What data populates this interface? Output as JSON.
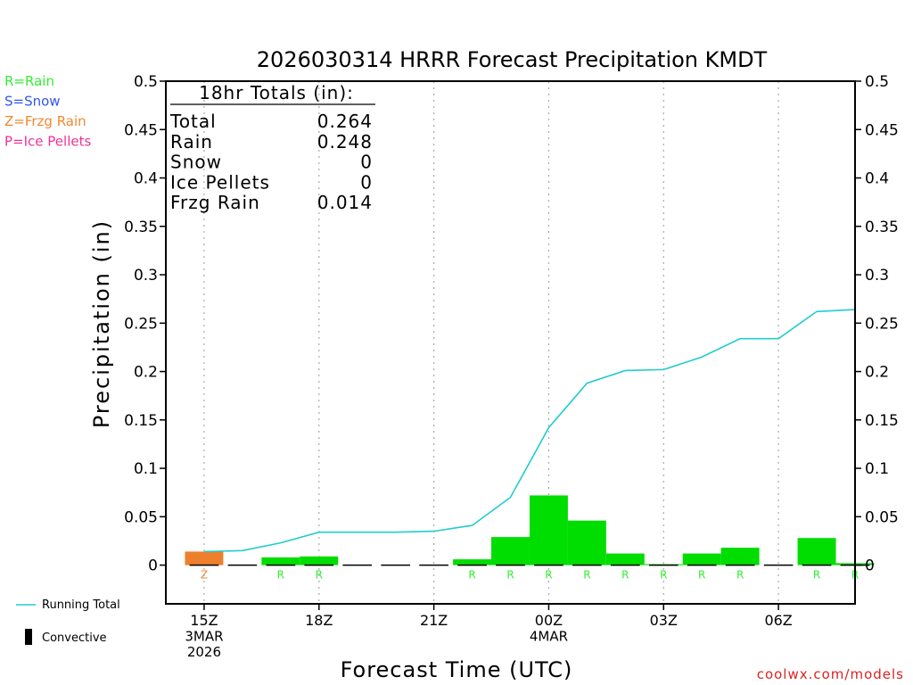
{
  "chart_data": {
    "type": "bar",
    "title": "2026030314 HRRR Forecast Precipitation KMDT",
    "xlabel": "Forecast Time (UTC)",
    "ylabel": "Precipitation (in)",
    "ylim": [
      -0.04,
      0.5
    ],
    "y_ticks": [
      0,
      0.05,
      0.1,
      0.15,
      0.2,
      0.25,
      0.3,
      0.35,
      0.4,
      0.45,
      0.5
    ],
    "y_tick_labels": [
      "0",
      "0.05",
      "0.1",
      "0.15",
      "0.2",
      "0.25",
      "0.3",
      "0.35",
      "0.4",
      "0.45",
      "0.5"
    ],
    "x_ticks": [
      {
        "hour": 0,
        "lines": [
          "15Z",
          "3MAR",
          "2026"
        ]
      },
      {
        "hour": 3,
        "lines": [
          "18Z"
        ]
      },
      {
        "hour": 6,
        "lines": [
          "21Z"
        ]
      },
      {
        "hour": 9,
        "lines": [
          "00Z",
          "4MAR"
        ]
      },
      {
        "hour": 12,
        "lines": [
          "03Z"
        ]
      },
      {
        "hour": 15,
        "lines": [
          "06Z"
        ]
      }
    ],
    "x_range_hours": [
      -1,
      17
    ],
    "grid": "vertical dotted at labeled hours",
    "type_legend": [
      {
        "code": "R",
        "text": "R=Rain",
        "color": "#33ee33"
      },
      {
        "code": "S",
        "text": "S=Snow",
        "color": "#3355ee"
      },
      {
        "code": "Z",
        "text": "Z=Frzg Rain",
        "color": "#ee8833"
      },
      {
        "code": "P",
        "text": "P=Ice Pellets",
        "color": "#ee3399"
      }
    ],
    "bar_colors": {
      "R": "#00dd00",
      "Z": "#ee7f2d"
    },
    "hourly": [
      {
        "hour": 0,
        "value": 0.014,
        "type": "Z"
      },
      {
        "hour": 1,
        "value": 0,
        "type": ""
      },
      {
        "hour": 2,
        "value": 0.008,
        "type": "R"
      },
      {
        "hour": 3,
        "value": 0.009,
        "type": "R"
      },
      {
        "hour": 4,
        "value": 0,
        "type": ""
      },
      {
        "hour": 5,
        "value": 0,
        "type": ""
      },
      {
        "hour": 6,
        "value": 0,
        "type": ""
      },
      {
        "hour": 7,
        "value": 0.006,
        "type": "R"
      },
      {
        "hour": 8,
        "value": 0.029,
        "type": "R"
      },
      {
        "hour": 9,
        "value": 0.072,
        "type": "R"
      },
      {
        "hour": 10,
        "value": 0.046,
        "type": "R"
      },
      {
        "hour": 11,
        "value": 0.012,
        "type": "R"
      },
      {
        "hour": 12,
        "value": 0.001,
        "type": "R"
      },
      {
        "hour": 13,
        "value": 0.012,
        "type": "R"
      },
      {
        "hour": 14,
        "value": 0.018,
        "type": "R"
      },
      {
        "hour": 15,
        "value": 0,
        "type": ""
      },
      {
        "hour": 16,
        "value": 0.028,
        "type": "R"
      },
      {
        "hour": 17,
        "value": 0.002,
        "type": "R"
      }
    ],
    "running_total": {
      "name": "Running Total",
      "color": "#22cccc",
      "hours": [
        0,
        1,
        2,
        3,
        4,
        5,
        6,
        7,
        8,
        9,
        10,
        11,
        12,
        13,
        14,
        15,
        16,
        17
      ],
      "values": [
        0.014,
        0.015,
        0.023,
        0.034,
        0.034,
        0.034,
        0.035,
        0.041,
        0.07,
        0.142,
        0.188,
        0.201,
        0.202,
        0.215,
        0.234,
        0.234,
        0.262,
        0.264
      ]
    },
    "totals_box": {
      "header": "18hr Totals (in):",
      "rows": [
        {
          "label": "Total",
          "value": "0.264"
        },
        {
          "label": "Rain",
          "value": "0.248"
        },
        {
          "label": "Snow",
          "value": "0"
        },
        {
          "label": "Ice Pellets",
          "value": "0"
        },
        {
          "label": "Frzg Rain",
          "value": "0.014"
        }
      ]
    },
    "bottom_legend": [
      {
        "key": "running",
        "text": "Running Total"
      },
      {
        "key": "convective",
        "text": "Convective"
      }
    ],
    "credit": "coolwx.com/models"
  }
}
